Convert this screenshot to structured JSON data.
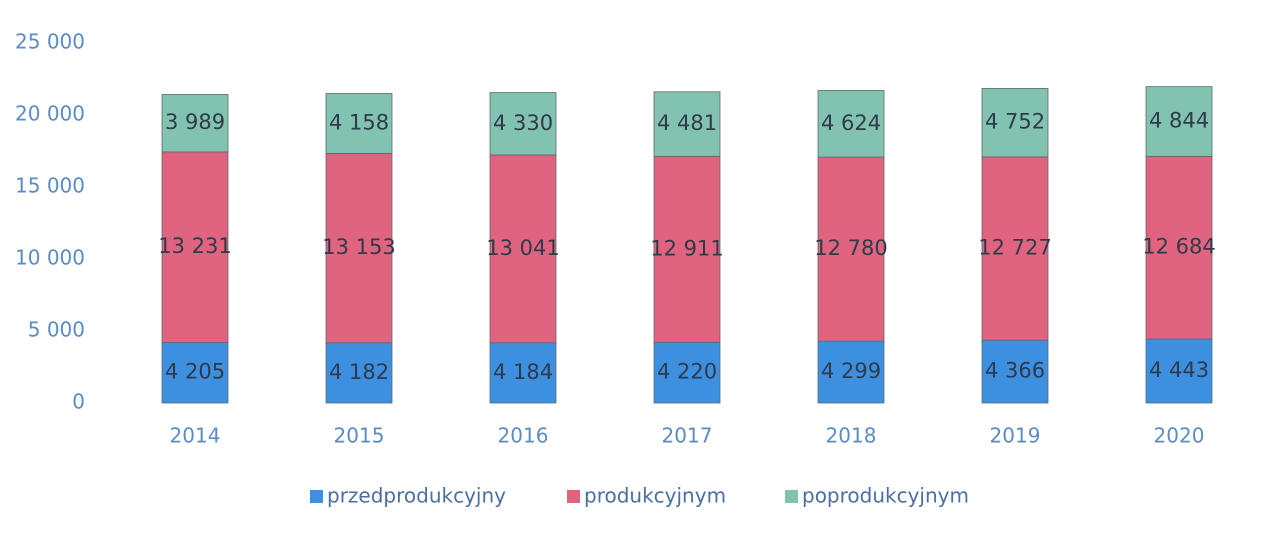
{
  "chart_data": {
    "type": "stacked_bar",
    "categories": [
      "2014",
      "2015",
      "2016",
      "2017",
      "2018",
      "2019",
      "2020"
    ],
    "series": [
      {
        "name": "przedprodukcyjny",
        "color": "#3d8fe0",
        "values": [
          4205,
          4182,
          4184,
          4220,
          4299,
          4366,
          4443
        ],
        "value_labels": [
          "4 205",
          "4 182",
          "4 184",
          "4 220",
          "4 299",
          "4 366",
          "4 443"
        ]
      },
      {
        "name": "produkcyjnym",
        "color": "#e0647f",
        "values": [
          13231,
          13153,
          13041,
          12911,
          12780,
          12727,
          12684
        ],
        "value_labels": [
          "13 231",
          "13 153",
          "13 041",
          "12 911",
          "12 780",
          "12 727",
          "12 684"
        ]
      },
      {
        "name": "poprodukcyjnym",
        "color": "#82c2b0",
        "values": [
          3989,
          4158,
          4330,
          4481,
          4624,
          4752,
          4844
        ],
        "value_labels": [
          "3 989",
          "4 158",
          "4 330",
          "4 481",
          "4 624",
          "4 752",
          "4 844"
        ]
      }
    ],
    "ylim": [
      0,
      25000
    ],
    "yticks": [
      0,
      {
        "value": 5000,
        "label": "5 000"
      },
      {
        "value": 10000,
        "label": "10 000"
      },
      {
        "value": 15000,
        "label": "15 000"
      },
      {
        "value": 20000,
        "label": "20 000"
      },
      {
        "value": 25000,
        "label": "25 000"
      }
    ],
    "grid": false,
    "legend": "bottom"
  }
}
